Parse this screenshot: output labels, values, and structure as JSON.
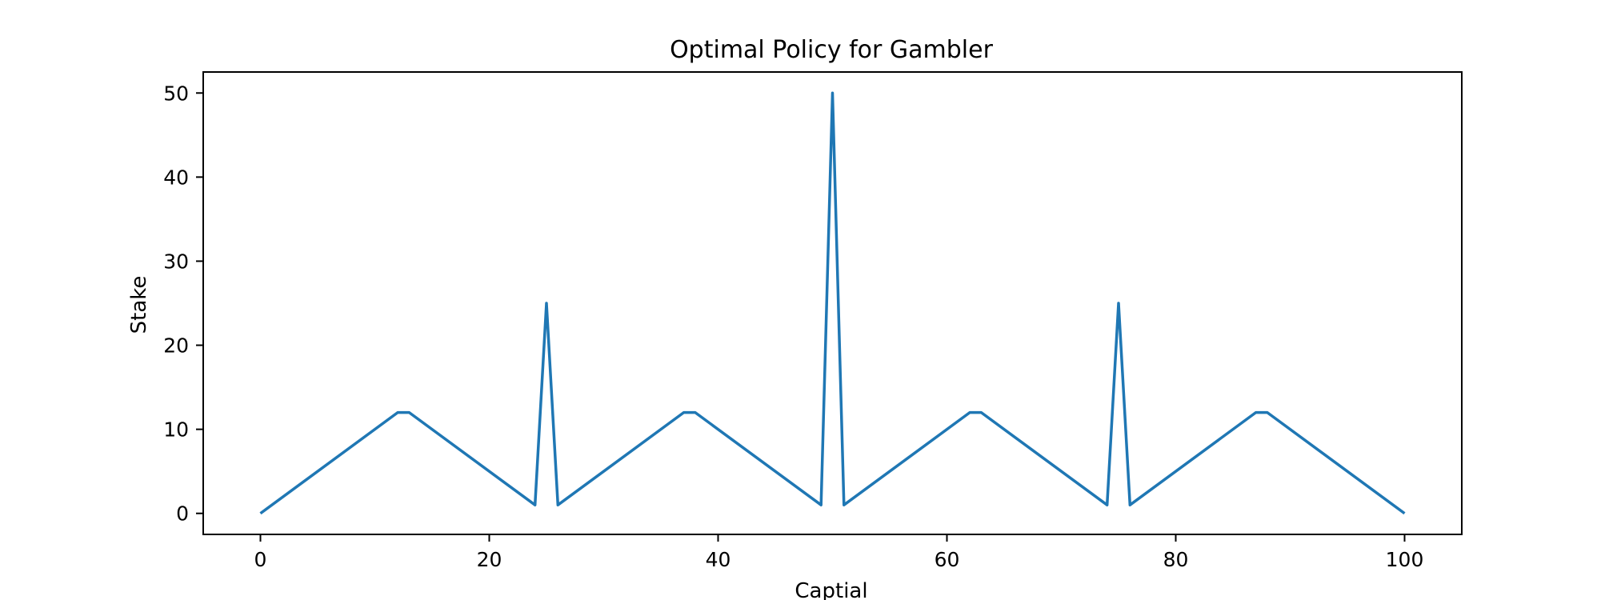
{
  "chart_data": {
    "type": "line",
    "title": "Optimal Policy for Gambler",
    "xlabel": "Captial",
    "ylabel": "Stake",
    "xlim": [
      -5,
      105
    ],
    "ylim": [
      -2.5,
      52.5
    ],
    "xticks": [
      0,
      20,
      40,
      60,
      80,
      100
    ],
    "yticks": [
      0,
      10,
      20,
      30,
      40,
      50
    ],
    "grid": false,
    "series": [
      {
        "color": "#1f77b4",
        "points": [
          [
            0,
            0
          ],
          [
            12,
            12
          ],
          [
            13,
            12
          ],
          [
            24,
            1
          ],
          [
            25,
            25
          ],
          [
            26,
            1
          ],
          [
            37,
            12
          ],
          [
            38,
            12
          ],
          [
            49,
            1
          ],
          [
            50,
            50
          ],
          [
            51,
            1
          ],
          [
            62,
            12
          ],
          [
            63,
            12
          ],
          [
            74,
            1
          ],
          [
            75,
            25
          ],
          [
            76,
            1
          ],
          [
            87,
            12
          ],
          [
            88,
            12
          ],
          [
            100,
            0
          ]
        ]
      }
    ]
  }
}
